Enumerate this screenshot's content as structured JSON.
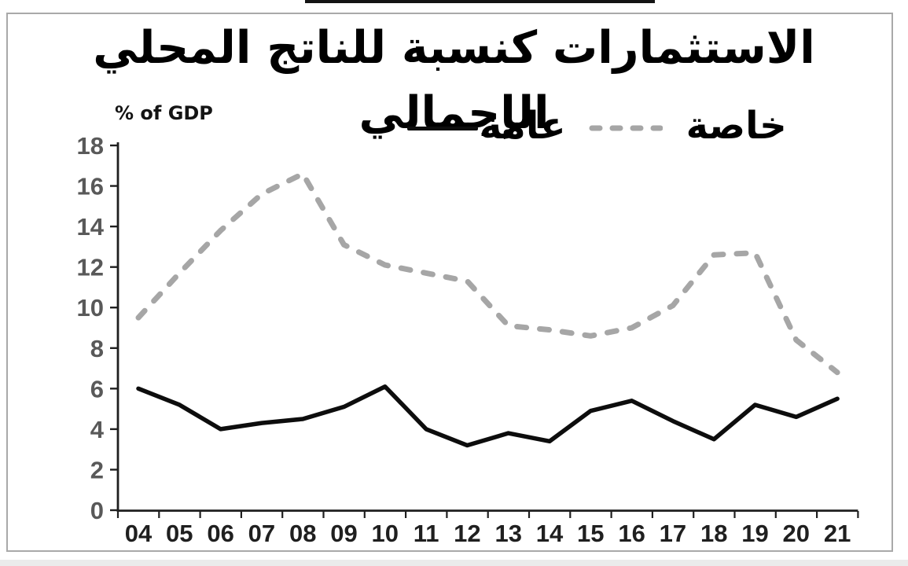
{
  "chart_data": {
    "type": "line",
    "title": "الاستثمارات كنسبة للناتج المحلي الإجمالي",
    "ylabel": "% of GDP",
    "xlabel": "",
    "categories": [
      "04",
      "05",
      "06",
      "07",
      "08",
      "09",
      "10",
      "11",
      "12",
      "13",
      "14",
      "15",
      "16",
      "17",
      "18",
      "19",
      "20",
      "21"
    ],
    "ylim": [
      0,
      18
    ],
    "ytick_step": 2,
    "grid": "off",
    "legend_position": "top-center",
    "series": [
      {
        "id": "public",
        "name": "عامة",
        "style": "solid",
        "color": "#0d0d0d",
        "values": [
          6.0,
          5.2,
          4.0,
          4.3,
          4.5,
          5.1,
          6.1,
          4.0,
          3.2,
          3.8,
          3.4,
          4.9,
          5.4,
          4.4,
          3.5,
          5.2,
          4.6,
          5.5
        ]
      },
      {
        "id": "private",
        "name": "خاصة",
        "style": "dashed",
        "color": "#a6a6a6",
        "values": [
          9.5,
          11.7,
          13.8,
          15.6,
          16.6,
          13.1,
          12.1,
          11.7,
          11.3,
          9.1,
          8.9,
          8.6,
          9.0,
          10.1,
          12.6,
          12.7,
          8.4,
          6.8
        ]
      }
    ],
    "axis_colors": {
      "axis_line": "#1f1f1f",
      "y_tick_label": "#595959",
      "x_tick_label": "#1f1f1f"
    }
  }
}
